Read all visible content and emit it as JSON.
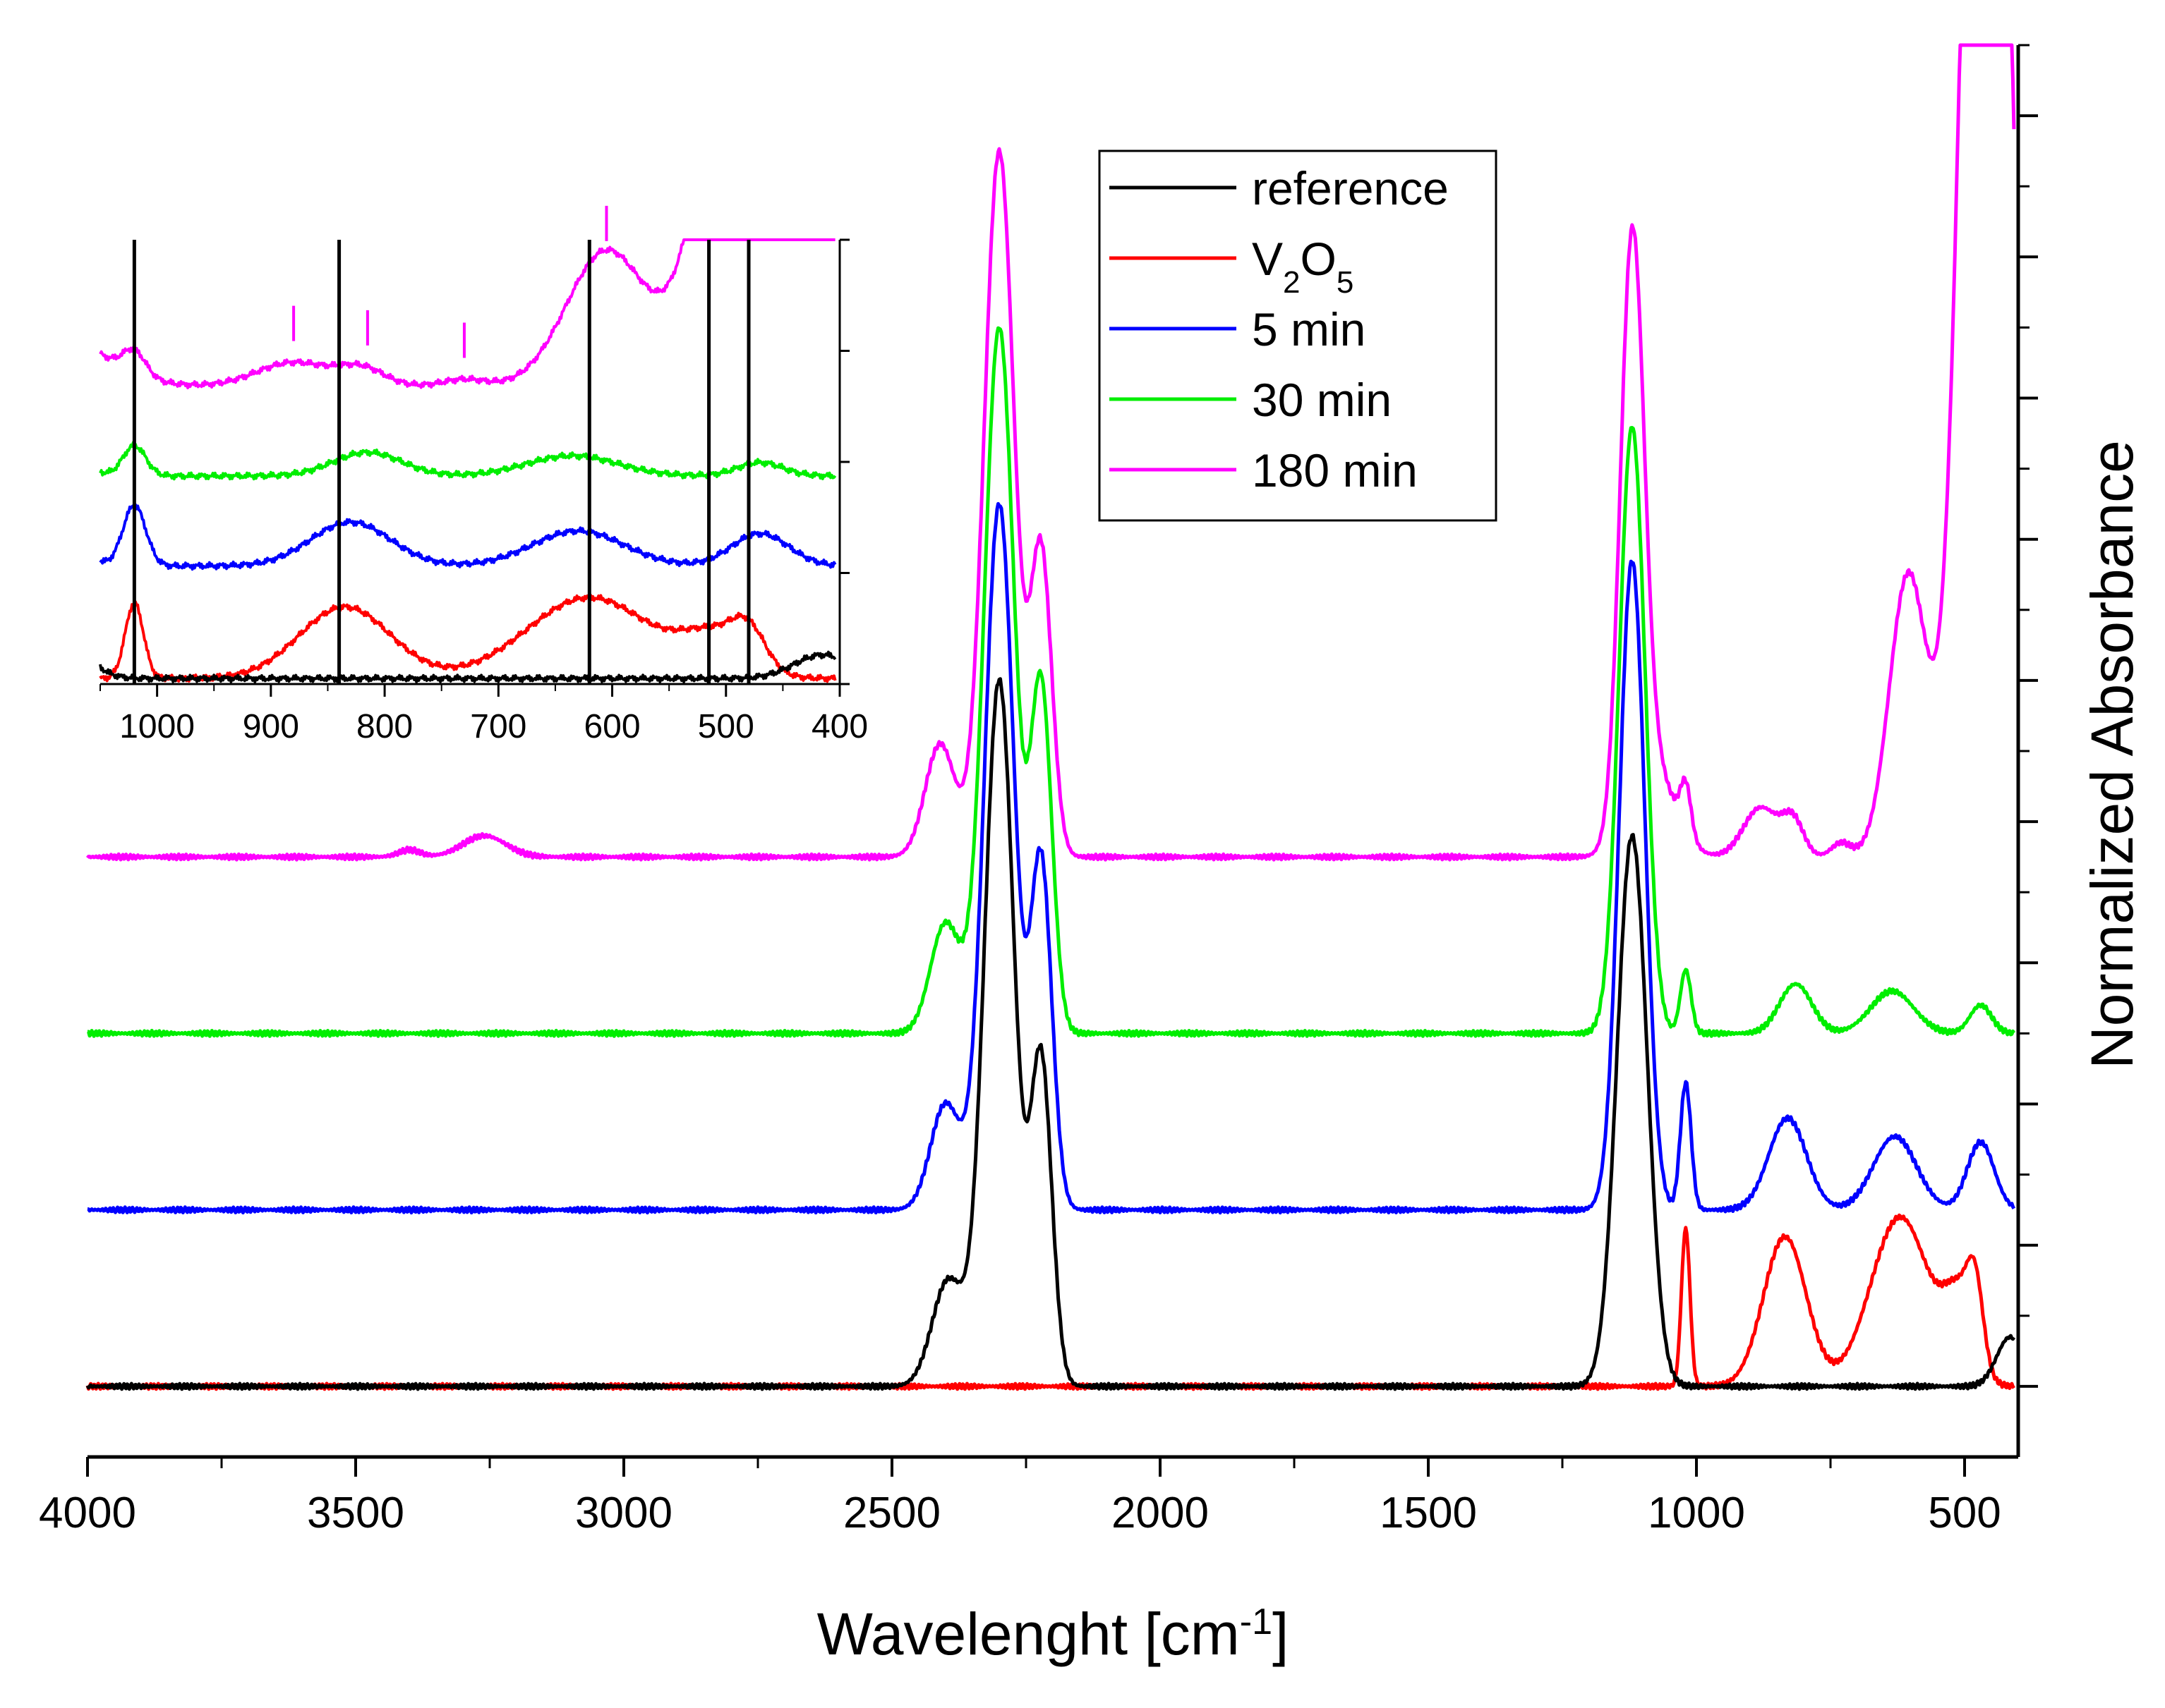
{
  "chart_data": {
    "type": "line",
    "title": "",
    "xlabel": "Wavelenght [cm",
    "xlabel_sup": "-1",
    "xlabel_tail": "]",
    "ylabel": "Normalized Absorbance",
    "xlim": [
      4000,
      400
    ],
    "x_reversed": true,
    "ylim": [
      -0.5,
      9.5
    ],
    "y_tick_labels_shown": false,
    "x_ticks": [
      4000,
      3500,
      3000,
      2500,
      2000,
      1500,
      1000,
      500
    ],
    "x_tick_labels": [
      "4000",
      "3500",
      "3000",
      "2500",
      "2000",
      "1500",
      "1000",
      "500"
    ],
    "legend_position": "top-center",
    "series": [
      {
        "name": "reference",
        "legend_label": "reference",
        "color": "#000000",
        "offset": 0,
        "peaks": [
          [
            2300,
            5.0,
            28
          ],
          [
            2222,
            2.3,
            20
          ],
          [
            2395,
            0.75,
            30
          ],
          [
            1120,
            3.9,
            28
          ],
          [
            415,
            0.35,
            25
          ]
        ]
      },
      {
        "name": "V2O5",
        "legend_label": "V",
        "legend_sub1": "2",
        "legend_mid": "O",
        "legend_sub2": "5",
        "color": "#ff0000",
        "offset": 0,
        "peaks": [
          [
            1020,
            1.12,
            8
          ],
          [
            835,
            1.06,
            40
          ],
          [
            620,
            1.2,
            55
          ],
          [
            510,
            0.55,
            28
          ],
          [
            480,
            0.52,
            15
          ]
        ]
      },
      {
        "name": "5 min",
        "legend_label": "5 min",
        "color": "#0000ff",
        "offset": 1.25,
        "peaks": [
          [
            2300,
            5.0,
            28
          ],
          [
            2222,
            2.45,
            20
          ],
          [
            2400,
            0.75,
            28
          ],
          [
            1120,
            4.6,
            24
          ],
          [
            1020,
            0.9,
            10
          ],
          [
            830,
            0.65,
            35
          ],
          [
            630,
            0.52,
            40
          ],
          [
            470,
            0.48,
            25
          ]
        ]
      },
      {
        "name": "30 min",
        "legend_label": "30 min",
        "color": "#00ee00",
        "offset": 2.5,
        "peaks": [
          [
            2300,
            5.0,
            28
          ],
          [
            2222,
            2.45,
            20
          ],
          [
            2400,
            0.78,
            28
          ],
          [
            1120,
            4.3,
            24
          ],
          [
            1020,
            0.45,
            10
          ],
          [
            815,
            0.35,
            30
          ],
          [
            635,
            0.3,
            40
          ],
          [
            470,
            0.2,
            20
          ]
        ]
      },
      {
        "name": "180 min",
        "legend_label": "180 min",
        "color": "#ff00ff",
        "offset": 3.75,
        "peaks": [
          [
            2300,
            5.0,
            28
          ],
          [
            2222,
            2.15,
            20
          ],
          [
            2410,
            0.8,
            28
          ],
          [
            3260,
            0.15,
            40
          ],
          [
            3400,
            0.05,
            20
          ],
          [
            1120,
            4.1,
            22
          ],
          [
            1080,
            0.6,
            40
          ],
          [
            1020,
            0.35,
            10
          ],
          [
            880,
            0.35,
            32
          ],
          [
            820,
            0.25,
            20
          ],
          [
            730,
            0.1,
            18
          ],
          [
            605,
            2.0,
            35
          ],
          [
            460,
            12.0,
            40
          ]
        ]
      }
    ],
    "inset": {
      "xlim": [
        1050,
        400
      ],
      "x_ticks": [
        1000,
        900,
        800,
        700,
        600,
        500,
        400
      ],
      "x_tick_labels": [
        "1000",
        "900",
        "800",
        "700",
        "600",
        "500",
        "400"
      ],
      "reference_lines": [
        1020,
        840,
        620,
        515,
        480
      ],
      "markers_180min": [
        880,
        815,
        730,
        605
      ],
      "series_offsets": {
        "reference": 0,
        "V2O5": 0,
        "5 min": 1.0,
        "30 min": 1.8,
        "180 min": 2.6
      },
      "series_scale": 0.6
    }
  }
}
